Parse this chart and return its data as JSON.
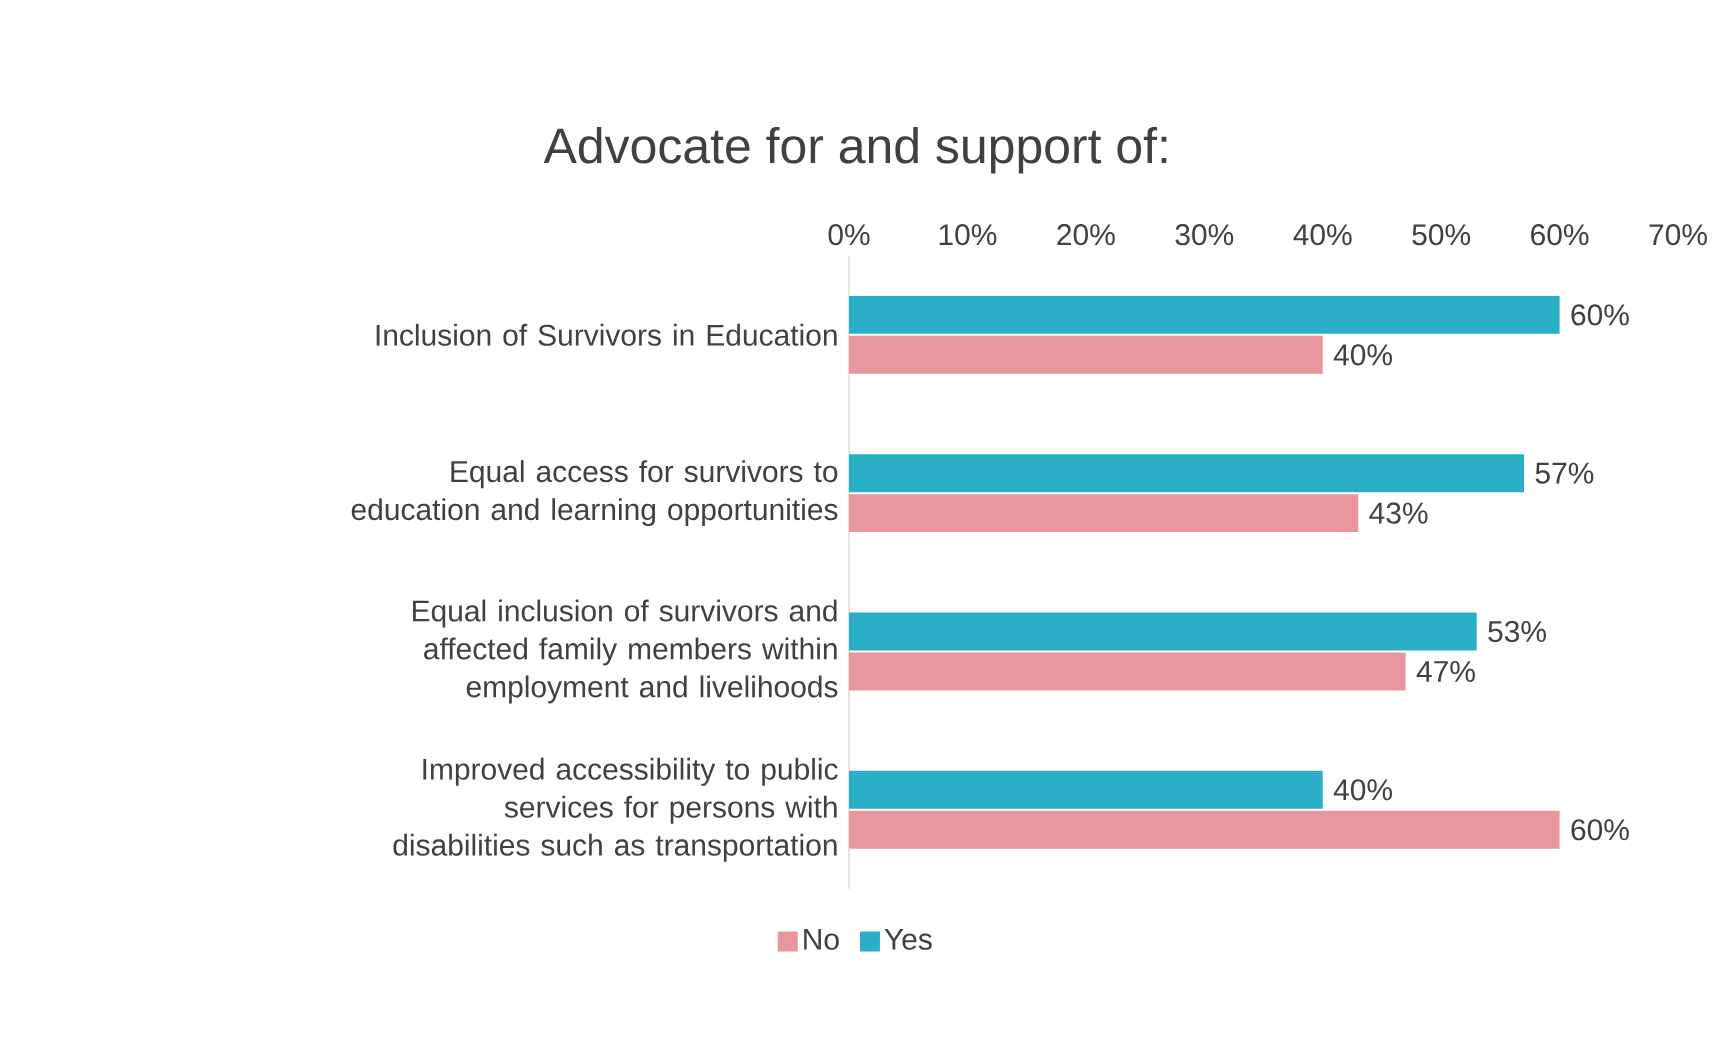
{
  "chart_data": {
    "type": "bar",
    "orientation": "horizontal",
    "title": "Advocate for and support of:",
    "categories": [
      "Inclusion of Survivors in Education",
      "Equal access for survivors to education and learning opportunities",
      "Equal inclusion of survivors and affected family members within employment and livelihoods",
      "Improved accessibility to public services for persons with disabilities such as transportation"
    ],
    "series": [
      {
        "name": "No",
        "color": "#e8959e",
        "values": [
          40,
          43,
          47,
          60
        ],
        "value_labels": [
          "40%",
          "43%",
          "47%",
          "60%"
        ]
      },
      {
        "name": "Yes",
        "color": "#2aafc7",
        "values": [
          60,
          57,
          53,
          40
        ],
        "value_labels": [
          "60%",
          "57%",
          "53%",
          "40%"
        ]
      }
    ],
    "xlim": [
      0,
      70
    ],
    "xticks": [
      {
        "value": 0,
        "label": "0%"
      },
      {
        "value": 10,
        "label": "10%"
      },
      {
        "value": 20,
        "label": "20%"
      },
      {
        "value": 30,
        "label": "30%"
      },
      {
        "value": 40,
        "label": "40%"
      },
      {
        "value": 50,
        "label": "50%"
      },
      {
        "value": 60,
        "label": "60%"
      },
      {
        "value": 70,
        "label": "70%"
      }
    ],
    "grid": false,
    "legend": "bottom"
  }
}
